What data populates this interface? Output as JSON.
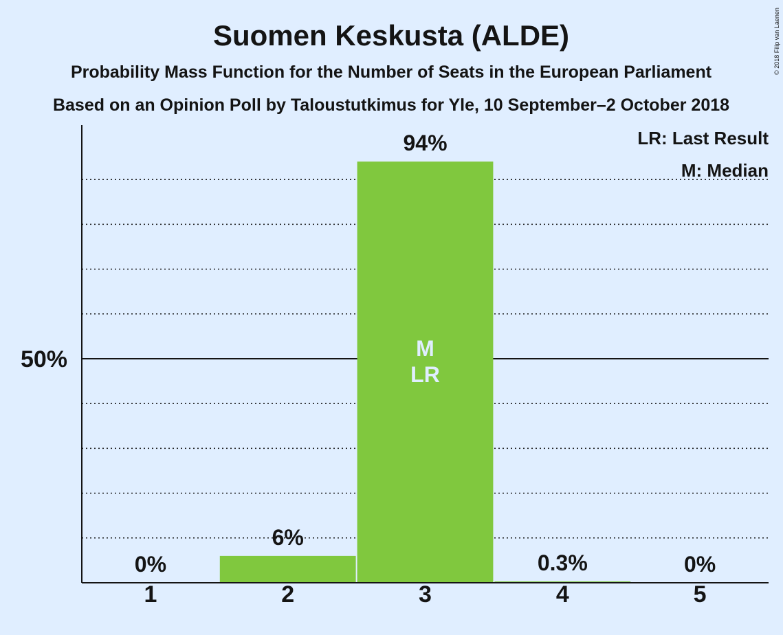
{
  "chart_data": {
    "type": "bar",
    "title": "Suomen Keskusta (ALDE)",
    "subtitle1": "Probability Mass Function for the Number of Seats in the European Parliament",
    "subtitle2": "Based on an Opinion Poll by Taloustutkimus for Yle, 10 September–2 October 2018",
    "copyright": "© 2018 Filip van Laenen",
    "categories": [
      "1",
      "2",
      "3",
      "4",
      "5"
    ],
    "values": [
      0,
      6,
      94,
      0.3,
      0
    ],
    "value_labels": [
      "0%",
      "6%",
      "94%",
      "0.3%",
      "0%"
    ],
    "ylim": [
      0,
      102
    ],
    "ytick_label": "50%",
    "ytick_value": 50,
    "gridlines": [
      10,
      20,
      30,
      40,
      60,
      70,
      80,
      90
    ],
    "bar_markers": {
      "3": [
        "M",
        "LR"
      ]
    },
    "legend": [
      "LR: Last Result",
      "M: Median"
    ],
    "colors": {
      "bar": "#80c83e",
      "background": "#e0eeff",
      "text": "#141414",
      "marker_text": "#e0eeff"
    }
  }
}
